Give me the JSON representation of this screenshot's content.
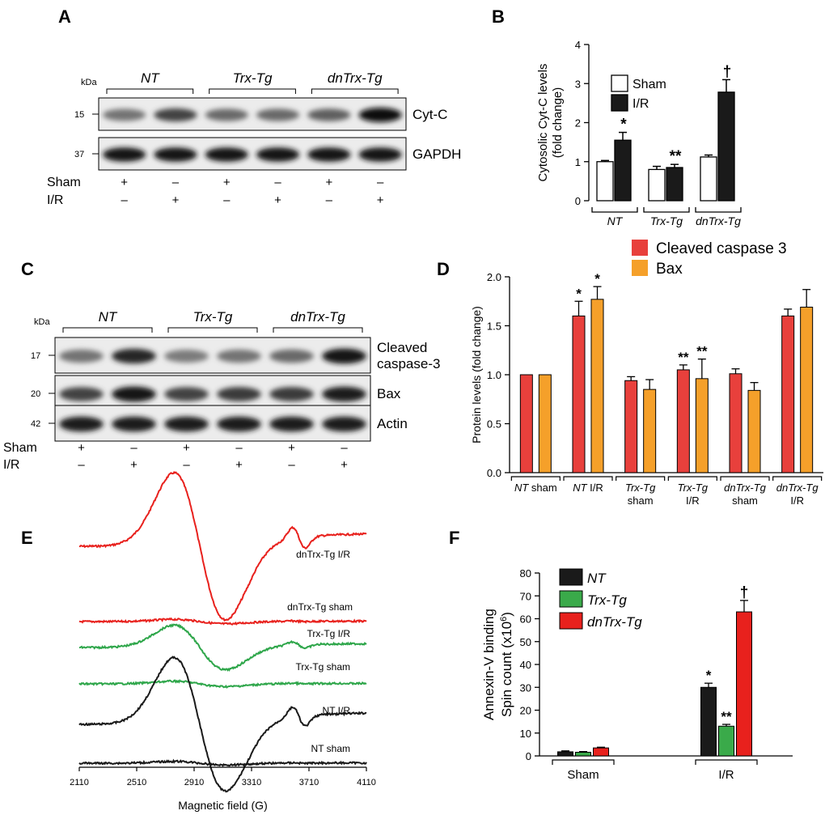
{
  "panels": {
    "A": "A",
    "B": "B",
    "C": "C",
    "D": "D",
    "E": "E",
    "F": "F"
  },
  "blot_A": {
    "kda_label": "kDa",
    "groups": [
      "NT",
      "Trx-Tg",
      "dnTrx-Tg"
    ],
    "bands": [
      {
        "name": "Cyt-C",
        "marker": "15"
      },
      {
        "name": "GAPDH",
        "marker": "37"
      }
    ],
    "rows": [
      {
        "label": "Sham",
        "signs": [
          "+",
          "–",
          "+",
          "–",
          "+",
          "–"
        ]
      },
      {
        "label": "I/R",
        "signs": [
          "–",
          "+",
          "–",
          "+",
          "–",
          "+"
        ]
      }
    ],
    "intensity": {
      "Cyt-C": [
        0.45,
        0.7,
        0.5,
        0.5,
        0.55,
        1.0
      ],
      "GAPDH": [
        0.95,
        0.95,
        0.95,
        0.95,
        0.95,
        0.95
      ]
    }
  },
  "blot_C": {
    "kda_label": "kDa",
    "groups": [
      "NT",
      "Trx-Tg",
      "dnTrx-Tg"
    ],
    "bands": [
      {
        "name": "Cleaved caspase-3",
        "name_line1": "Cleaved",
        "name_line2": "caspase-3",
        "marker": "17"
      },
      {
        "name": "Bax",
        "marker": "20"
      },
      {
        "name": "Actin",
        "marker": "42"
      }
    ],
    "rows": [
      {
        "label": "Sham",
        "signs": [
          "+",
          "–",
          "+",
          "–",
          "+",
          "–"
        ]
      },
      {
        "label": "I/R",
        "signs": [
          "–",
          "+",
          "–",
          "+",
          "–",
          "+"
        ]
      }
    ],
    "intensity": {
      "Cleaved caspase-3": [
        0.45,
        0.85,
        0.4,
        0.45,
        0.5,
        0.95
      ],
      "Bax": [
        0.7,
        0.95,
        0.7,
        0.75,
        0.75,
        0.9
      ],
      "Actin": [
        0.9,
        0.9,
        0.9,
        0.9,
        0.9,
        0.9
      ]
    }
  },
  "chart_data": [
    {
      "id": "B",
      "type": "bar",
      "ylabel_line1": "Cytosolic Cyt-C levels",
      "ylabel_line2": "(fold change)",
      "ylim": [
        0,
        4
      ],
      "yticks": [
        "0",
        "1",
        "2",
        "3",
        "4"
      ],
      "categories": [
        "NT",
        "Trx-Tg",
        "dnTrx-Tg"
      ],
      "series": [
        {
          "name": "Sham",
          "color": "#ffffff",
          "values": [
            1.0,
            0.8,
            1.12
          ],
          "errors": [
            0.03,
            0.08,
            0.05
          ]
        },
        {
          "name": "I/R",
          "color": "#1a1a1a",
          "values": [
            1.55,
            0.85,
            2.78
          ],
          "errors": [
            0.2,
            0.08,
            0.32
          ]
        }
      ],
      "annotations": [
        {
          "category": "NT",
          "series": "I/R",
          "text": "*"
        },
        {
          "category": "Trx-Tg",
          "series": "I/R",
          "text": "**"
        },
        {
          "category": "dnTrx-Tg",
          "series": "I/R",
          "text": "†"
        }
      ]
    },
    {
      "id": "D",
      "type": "bar",
      "ylabel": "Protein levels (fold change)",
      "ylim": [
        0,
        2.0
      ],
      "yticks": [
        "0.0",
        "0.5",
        "1.0",
        "1.5",
        "2.0"
      ],
      "categories": [
        {
          "italic": "NT",
          "plain": " sham",
          "line2": ""
        },
        {
          "italic": "NT",
          "plain": " I/R",
          "line2": ""
        },
        {
          "italic": "Trx-Tg",
          "plain": "",
          "line2": "sham"
        },
        {
          "italic": "Trx-Tg",
          "plain": "",
          "line2": "I/R"
        },
        {
          "italic": "dnTrx-Tg",
          "plain": "",
          "line2": "sham"
        },
        {
          "italic": "dnTrx-Tg",
          "plain": "",
          "line2": "I/R"
        }
      ],
      "series": [
        {
          "name": "Cleaved caspase 3",
          "color": "#e8403c",
          "values": [
            1.0,
            1.6,
            0.94,
            1.05,
            1.01,
            1.6
          ],
          "errors": [
            0,
            0.15,
            0.04,
            0.05,
            0.05,
            0.07
          ]
        },
        {
          "name": "Bax",
          "color": "#f5a02a",
          "values": [
            1.0,
            1.77,
            0.85,
            0.96,
            0.84,
            1.69
          ],
          "errors": [
            0,
            0.13,
            0.1,
            0.2,
            0.08,
            0.18
          ]
        }
      ],
      "annotations": [
        {
          "index": 1,
          "series": 0,
          "text": "*"
        },
        {
          "index": 1,
          "series": 1,
          "text": "*"
        },
        {
          "index": 3,
          "series": 0,
          "text": "**"
        },
        {
          "index": 3,
          "series": 1,
          "text": "**"
        }
      ]
    },
    {
      "id": "E",
      "type": "line",
      "xlabel": "Magnetic field (G)",
      "xlim": [
        2110,
        4110
      ],
      "xticks": [
        "2110",
        "2510",
        "2910",
        "3310",
        "3710",
        "4110"
      ],
      "series": [
        {
          "name": "dnTrx-Tg I/R",
          "color": "#e8211d",
          "amp": 1.0
        },
        {
          "name": "dnTrx-Tg sham",
          "color": "#e8211d",
          "amp": 0.06
        },
        {
          "name": "Trx-Tg I/R",
          "color": "#2ea64a",
          "amp": 0.35
        },
        {
          "name": "Trx-Tg sham",
          "color": "#2ea64a",
          "amp": 0.06
        },
        {
          "name": "NT I/R",
          "color": "#1a1a1a",
          "amp": 0.85
        },
        {
          "name": "NT sham",
          "color": "#1a1a1a",
          "amp": 0.05
        }
      ]
    },
    {
      "id": "F",
      "type": "bar",
      "ylabel_line1": "Annexin-V binding",
      "ylabel_line2": "Spin count (x10",
      "ylabel_sup": "6",
      "ylabel_close": ")",
      "ylim": [
        0,
        80
      ],
      "yticks": [
        "0",
        "10",
        "20",
        "30",
        "40",
        "50",
        "60",
        "70",
        "80"
      ],
      "categories": [
        "Sham",
        "I/R"
      ],
      "series": [
        {
          "name": "NT",
          "color": "#1a1a1a",
          "values": [
            1.8,
            30
          ],
          "errors": [
            0.4,
            1.8
          ]
        },
        {
          "name": "Trx-Tg",
          "color": "#3aaa4a",
          "values": [
            1.6,
            13
          ],
          "errors": [
            0.3,
            0.8
          ]
        },
        {
          "name": "dnTrx-Tg",
          "color": "#e8211d",
          "values": [
            3.5,
            63
          ],
          "errors": [
            0.3,
            5.0
          ]
        }
      ],
      "annotations": [
        {
          "category": 1,
          "series": 0,
          "text": "*"
        },
        {
          "category": 1,
          "series": 1,
          "text": "**"
        },
        {
          "category": 1,
          "series": 2,
          "text": "†"
        }
      ]
    }
  ]
}
